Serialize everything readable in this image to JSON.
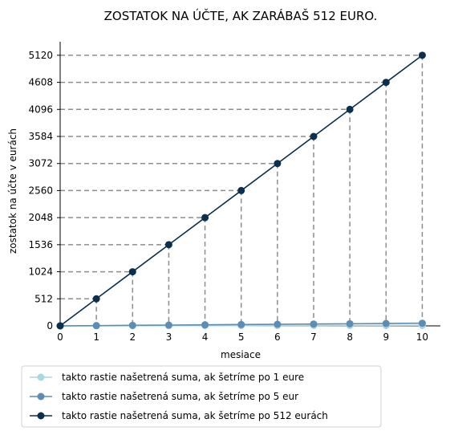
{
  "chart_data": {
    "type": "line",
    "title": "ZOSTATOK NA ÚČTE, AK ZARÁBAŠ 512 EURO.",
    "xlabel": "mesiace",
    "ylabel": "zostatok na účte v eurách",
    "x": [
      0,
      1,
      2,
      3,
      4,
      5,
      6,
      7,
      8,
      9,
      10
    ],
    "xlim": [
      0,
      10.5
    ],
    "ylim": [
      0,
      5376
    ],
    "xticks": [
      "0",
      "1",
      "2",
      "3",
      "4",
      "5",
      "6",
      "7",
      "8",
      "9",
      "10"
    ],
    "yticks": [
      "0",
      "512",
      "1024",
      "1536",
      "2048",
      "2560",
      "3072",
      "3584",
      "4096",
      "4608",
      "5120"
    ],
    "ytick_values": [
      0,
      512,
      1024,
      1536,
      2048,
      2560,
      3072,
      3584,
      4096,
      4608,
      5120
    ],
    "grid": false,
    "guides": "dashed drop lines from the 512-euro series points to both axes",
    "legend_position": "below",
    "series": [
      {
        "name": "takto rastie našetrená suma, ak šetríme po 1 eure",
        "values": [
          0,
          1,
          2,
          3,
          4,
          5,
          6,
          7,
          8,
          9,
          10
        ],
        "color": "#a8d8e0"
      },
      {
        "name": "takto rastie našetrená suma, ak šetríme po 5 eur",
        "values": [
          0,
          5,
          10,
          15,
          20,
          25,
          30,
          35,
          40,
          45,
          50
        ],
        "color": "#5b8db5"
      },
      {
        "name": "takto rastie našetrená suma, ak šetríme po 512 eurách",
        "values": [
          0,
          512,
          1024,
          1536,
          2048,
          2560,
          3072,
          3584,
          4096,
          4608,
          5120
        ],
        "color": "#0b2f4e"
      }
    ]
  }
}
